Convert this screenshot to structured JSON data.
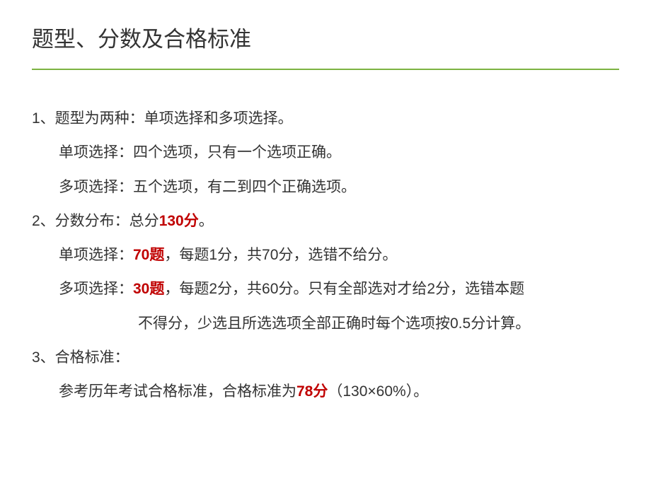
{
  "title": "题型、分数及合格标准",
  "colors": {
    "text": "#333333",
    "highlight": "#c00000",
    "underline": "#7cb342",
    "background": "#ffffff"
  },
  "typography": {
    "title_fontsize": 31,
    "body_fontsize": 21,
    "line_height": 2.3,
    "font_family": "Microsoft YaHei"
  },
  "lines": {
    "l1": "1、题型为两种：单项选择和多项选择。",
    "l2": "单项选择：四个选项，只有一个选项正确。",
    "l3": "多项选择：五个选项，有二到四个正确选项。",
    "l4_a": "2、分数分布：总分",
    "l4_b": "130分",
    "l4_c": "。",
    "l5_a": "单项选择：",
    "l5_b": "70题",
    "l5_c": "，每题1分，共70分，选错不给分。",
    "l6_a": "多项选择：",
    "l6_b": "30题",
    "l6_c": "，每题2分，共60分。只有全部选对才给2分，选错本题",
    "l7": "不得分，少选且所选选项全部正确时每个选项按0.5分计算。",
    "l8": "3、合格标准：",
    "l9_a": "参考历年考试合格标准，合格标准为",
    "l9_b": "78分",
    "l9_c": "（130×60%）。"
  }
}
